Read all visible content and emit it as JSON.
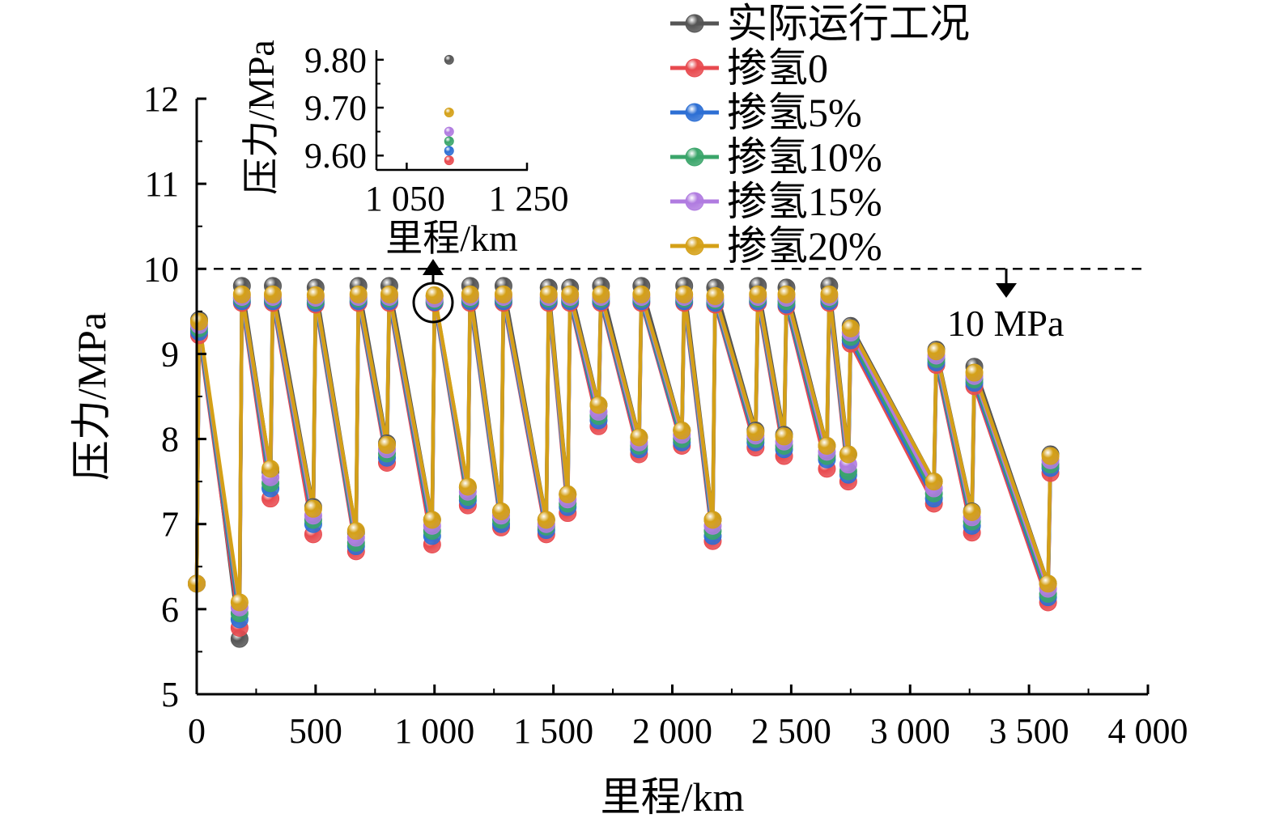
{
  "chart_data": {
    "type": "line",
    "xlabel": "里程/km",
    "ylabel": "压力/MPa",
    "xlim": [
      0,
      4000
    ],
    "ylim": [
      5,
      12
    ],
    "xticks": [
      0,
      500,
      1000,
      1500,
      2000,
      2500,
      3000,
      3500,
      4000
    ],
    "xtick_labels": [
      "0",
      "500",
      "1 000",
      "1 500",
      "2 000",
      "2 500",
      "3 000",
      "3 500",
      "4 000"
    ],
    "yticks": [
      5,
      6,
      7,
      8,
      9,
      10,
      11,
      12
    ],
    "ytick_labels": [
      "5",
      "6",
      "7",
      "8",
      "9",
      "10",
      "11",
      "12"
    ],
    "legend_position": "top-right",
    "reference_line": {
      "y": 10,
      "style": "dashed",
      "label": "10 MPa"
    },
    "x": [
      0,
      10,
      180,
      190,
      310,
      320,
      490,
      500,
      670,
      680,
      800,
      810,
      990,
      1000,
      1140,
      1150,
      1280,
      1290,
      1470,
      1480,
      1560,
      1570,
      1690,
      1700,
      1860,
      1870,
      2040,
      2050,
      2170,
      2180,
      2350,
      2360,
      2470,
      2480,
      2650,
      2660,
      2740,
      2750,
      3100,
      3110,
      3260,
      3270,
      3580,
      3590
    ],
    "series": [
      {
        "name": "实际运行工况",
        "color": "#555555",
        "values": [
          6.3,
          9.4,
          5.65,
          9.8,
          7.62,
          9.8,
          7.2,
          9.78,
          6.9,
          9.8,
          7.95,
          9.8,
          7.05,
          9.68,
          7.43,
          9.8,
          7.15,
          9.8,
          7.05,
          9.78,
          7.35,
          9.78,
          8.4,
          9.8,
          8.02,
          9.8,
          8.1,
          9.8,
          7.05,
          9.78,
          8.1,
          9.8,
          8.05,
          9.78,
          7.92,
          9.8,
          7.82,
          9.33,
          7.5,
          9.05,
          7.15,
          8.85,
          6.3,
          7.82
        ]
      },
      {
        "name": "掺氢0",
        "color": "#e84a4f",
        "values": [
          6.3,
          9.22,
          5.78,
          9.6,
          7.3,
          9.6,
          6.88,
          9.58,
          6.68,
          9.6,
          7.72,
          9.6,
          6.76,
          9.6,
          7.22,
          9.6,
          6.96,
          9.6,
          6.88,
          9.6,
          7.13,
          9.6,
          8.15,
          9.6,
          7.82,
          9.6,
          7.92,
          9.6,
          6.8,
          9.58,
          7.9,
          9.6,
          7.8,
          9.56,
          7.65,
          9.6,
          7.5,
          9.12,
          7.24,
          8.87,
          6.9,
          8.62,
          6.08,
          7.6
        ]
      },
      {
        "name": "掺氢5%",
        "color": "#2d6fd4",
        "values": [
          6.3,
          9.26,
          5.88,
          9.62,
          7.42,
          9.62,
          7.0,
          9.6,
          6.74,
          9.62,
          7.78,
          9.62,
          6.86,
          9.61,
          7.28,
          9.62,
          7.0,
          9.62,
          6.93,
          9.62,
          7.2,
          9.62,
          8.22,
          9.62,
          7.88,
          9.62,
          7.96,
          9.62,
          6.86,
          9.6,
          7.96,
          9.62,
          7.88,
          9.58,
          7.76,
          9.62,
          7.58,
          9.16,
          7.3,
          8.9,
          6.98,
          8.66,
          6.14,
          7.66
        ]
      },
      {
        "name": "掺氢10%",
        "color": "#3aa56a",
        "values": [
          6.3,
          9.3,
          5.95,
          9.65,
          7.48,
          9.65,
          7.05,
          9.63,
          6.78,
          9.65,
          7.83,
          9.65,
          6.92,
          9.63,
          7.32,
          9.65,
          7.05,
          9.65,
          6.97,
          9.65,
          7.24,
          9.65,
          8.27,
          9.65,
          7.92,
          9.65,
          8.0,
          9.65,
          6.92,
          9.63,
          8.0,
          9.65,
          7.92,
          9.62,
          7.8,
          9.65,
          7.62,
          9.2,
          7.36,
          8.94,
          7.03,
          8.7,
          6.18,
          7.7
        ]
      },
      {
        "name": "掺氢15%",
        "color": "#b07be0",
        "values": [
          6.3,
          9.34,
          6.02,
          9.67,
          7.55,
          9.67,
          7.1,
          9.66,
          6.84,
          9.67,
          7.88,
          9.67,
          6.98,
          9.65,
          7.38,
          9.67,
          7.1,
          9.67,
          7.0,
          9.67,
          7.29,
          9.67,
          8.32,
          9.67,
          7.96,
          9.67,
          8.05,
          9.67,
          6.98,
          9.65,
          8.04,
          9.67,
          7.97,
          9.66,
          7.85,
          9.67,
          7.7,
          9.25,
          7.42,
          8.98,
          7.08,
          8.74,
          6.24,
          7.75
        ]
      },
      {
        "name": "掺氢20%",
        "color": "#d4a017",
        "values": [
          6.3,
          9.38,
          6.08,
          9.7,
          7.65,
          9.7,
          7.18,
          9.69,
          6.92,
          9.7,
          7.93,
          9.7,
          7.05,
          9.69,
          7.44,
          9.7,
          7.15,
          9.7,
          7.05,
          9.7,
          7.35,
          9.7,
          8.4,
          9.7,
          8.02,
          9.7,
          8.1,
          9.7,
          7.05,
          9.68,
          8.08,
          9.7,
          8.03,
          9.7,
          7.92,
          9.7,
          7.82,
          9.3,
          7.5,
          9.03,
          7.14,
          8.78,
          6.3,
          7.8
        ]
      }
    ],
    "inset": {
      "xlabel": "里程/km",
      "ylabel": "压力/MPa",
      "xlim": [
        1000,
        1250
      ],
      "ylim": [
        9.57,
        9.82
      ],
      "xtick_labels": [
        "1 050",
        "1 250"
      ],
      "ytick_labels": [
        "9.60",
        "9.70",
        "9.80"
      ],
      "x": 1120,
      "values": [
        9.8,
        9.59,
        9.61,
        9.63,
        9.65,
        9.69
      ]
    }
  }
}
